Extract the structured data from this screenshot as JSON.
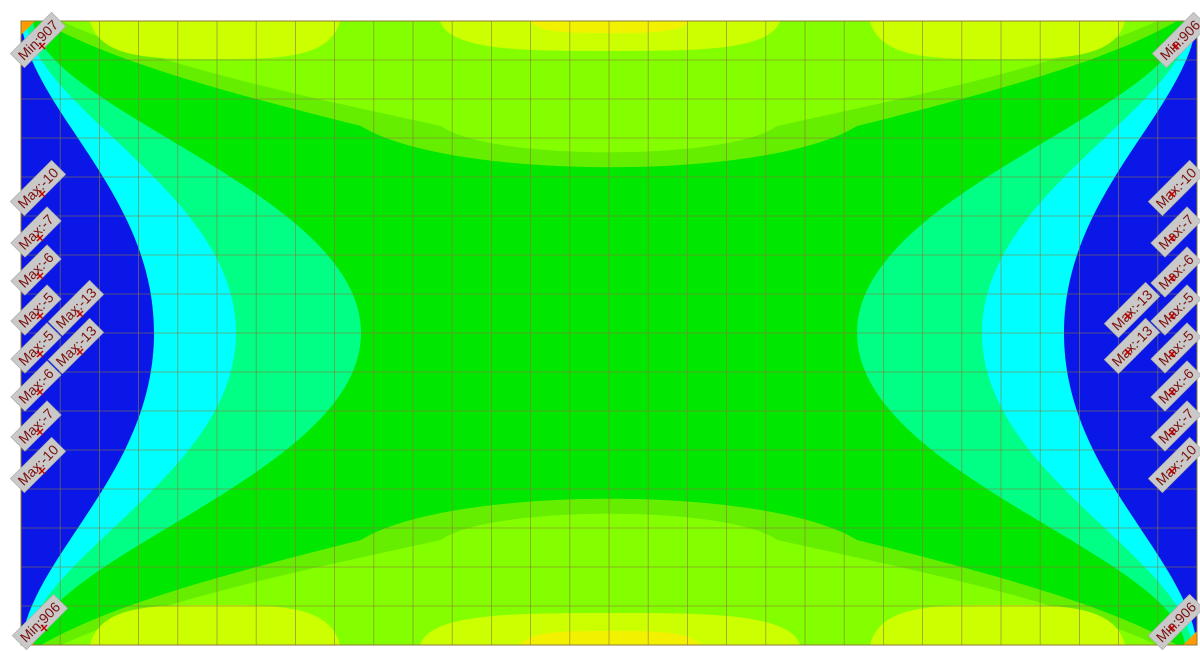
{
  "plot": {
    "colors": {
      "background": "#ffffff",
      "band_0": "#0a17e6",
      "band_1": "#00ffff",
      "band_2": "#00ff84",
      "band_3": "#00e800",
      "band_4": "#66ee00",
      "band_5": "#84ff00",
      "band_6": "#ccff00",
      "band_7": "#f2f200",
      "corner_hot": "#ff9a00",
      "mesh": "#8c7a3a",
      "tag_fill": "#c9c9c9",
      "tag_text": "#7a1010",
      "marker": "#c00000"
    },
    "markers": [
      {
        "label": "Min:907",
        "side": "left"
      },
      {
        "label": "Min:906",
        "side": "right"
      },
      {
        "label": "Min:906",
        "side": "left"
      },
      {
        "label": "Min:906",
        "side": "right"
      },
      {
        "label": "Max:-10",
        "side": "left"
      },
      {
        "label": "Max:-7",
        "side": "left"
      },
      {
        "label": "Max:-6",
        "side": "left"
      },
      {
        "label": "Max:-5",
        "side": "left"
      },
      {
        "label": "Max:-5",
        "side": "left"
      },
      {
        "label": "Max:-6",
        "side": "left"
      },
      {
        "label": "Max:-7",
        "side": "left"
      },
      {
        "label": "Max:-10",
        "side": "left"
      },
      {
        "label": "Max:-13",
        "side": "left"
      },
      {
        "label": "Max:-13",
        "side": "left"
      },
      {
        "label": "Max:-10",
        "side": "right"
      },
      {
        "label": "Max:-7",
        "side": "right"
      },
      {
        "label": "Max:-6",
        "side": "right"
      },
      {
        "label": "Max:-5",
        "side": "right"
      },
      {
        "label": "Max:-5",
        "side": "right"
      },
      {
        "label": "Max:-6",
        "side": "right"
      },
      {
        "label": "Max:-7",
        "side": "right"
      },
      {
        "label": "Max:-10",
        "side": "right"
      },
      {
        "label": "Max:-13",
        "side": "right"
      },
      {
        "label": "Max:-13",
        "side": "right"
      }
    ]
  }
}
